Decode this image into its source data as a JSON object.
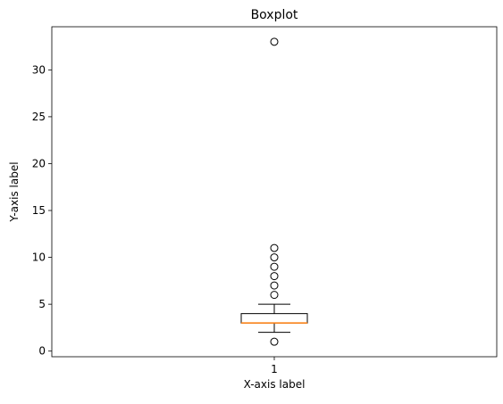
{
  "chart_data": {
    "type": "boxplot",
    "title": "Boxplot",
    "xlabel": "X-axis label",
    "ylabel": "Y-axis label",
    "categories": [
      "1"
    ],
    "ylim": [
      -0.6,
      34.6
    ],
    "yticks": [
      "0",
      "5",
      "10",
      "15",
      "20",
      "25",
      "30"
    ],
    "grid": false,
    "boxes": [
      {
        "category": "1",
        "whisker_low": 2,
        "q1": 3,
        "median": 3,
        "q3": 4,
        "whisker_high": 5,
        "outliers": [
          1,
          6,
          7,
          8,
          9,
          10,
          11,
          33
        ]
      }
    ],
    "colors": {
      "box": "#000000",
      "median": "#ff7f0e",
      "outlier_edge": "#000000"
    }
  }
}
